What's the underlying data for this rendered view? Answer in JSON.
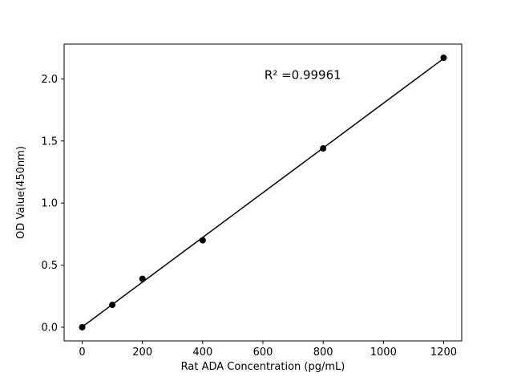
{
  "figure": {
    "background": "#ffffff"
  },
  "chart_data": {
    "type": "scatter",
    "title": "",
    "xlabel": "Rat ADA Concentration (pg/mL)",
    "ylabel": "OD Value(450nm)",
    "x": [
      0,
      100,
      200,
      400,
      800,
      1200
    ],
    "y": [
      0.0,
      0.18,
      0.39,
      0.7,
      1.44,
      2.17
    ],
    "fit_line": true,
    "annotation": {
      "text": "R² =0.99961",
      "x": 605,
      "y": 2.0
    },
    "xlim": [
      -60,
      1260
    ],
    "ylim": [
      -0.11,
      2.28
    ],
    "x_ticks": [
      0,
      200,
      400,
      600,
      800,
      1000,
      1200
    ],
    "x_tick_labels": [
      "0",
      "200",
      "400",
      "600",
      "800",
      "1000",
      "1200"
    ],
    "y_ticks": [
      0.0,
      0.5,
      1.0,
      1.5,
      2.0
    ],
    "y_tick_labels": [
      "0.0",
      "0.5",
      "1.0",
      "1.5",
      "2.0"
    ],
    "grid": false,
    "legend": null,
    "colors": {
      "marker": "#000000",
      "line": "#000000",
      "spine": "#000000",
      "background": "#ffffff"
    }
  }
}
